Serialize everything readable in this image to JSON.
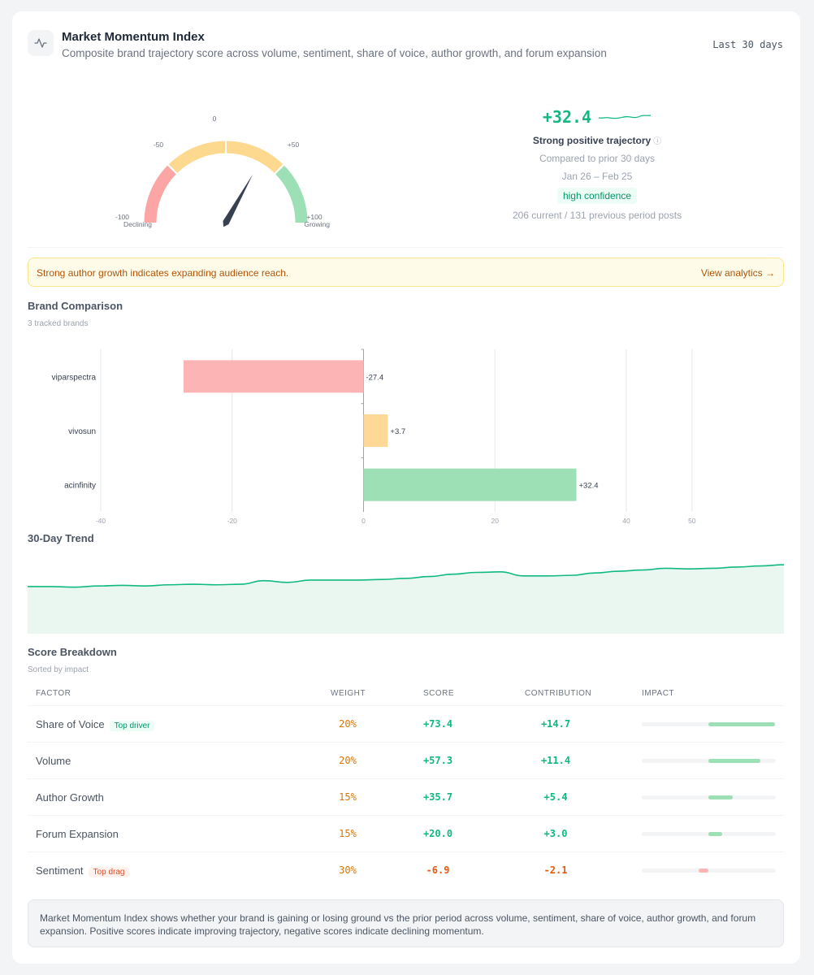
{
  "header": {
    "title": "Market Momentum Index",
    "subtitle": "Composite brand trajectory score across volume, sentiment, share of voice, author growth, and forum expansion",
    "range": "Last 30 days",
    "icon": "activity-icon"
  },
  "gauge": {
    "value": 32.4,
    "min": -100,
    "max": 100,
    "ticks": [
      "-100",
      "-50",
      "0",
      "+50",
      "+100"
    ],
    "label_left": "Declining",
    "label_right": "Growing",
    "colors": {
      "declining": "#fca5a5",
      "neutral": "#fcd98f",
      "growing": "#9ee0b5",
      "needle": "#374151"
    }
  },
  "summary": {
    "score": "+32.4",
    "trajectory": "Strong positive trajectory",
    "compared": "Compared to prior 30 days",
    "dates": "Jan 26 – Feb 25",
    "confidence": "high confidence",
    "posts": "206 current / 131 previous period posts"
  },
  "alert": {
    "text": "Strong author growth indicates expanding audience reach.",
    "link": "View analytics →"
  },
  "comparison": {
    "title": "Brand Comparison",
    "subtitle": "3 tracked brands"
  },
  "chart_data": [
    {
      "type": "bar",
      "orientation": "horizontal",
      "title": "Brand Comparison",
      "categories": [
        "viparspectra",
        "vivosun",
        "acinfinity"
      ],
      "values": [
        -27.4,
        3.7,
        32.4
      ],
      "value_labels": [
        "-27.4",
        "+3.7",
        "+32.4"
      ],
      "colors": [
        "#fdb4b4",
        "#fdd896",
        "#9de0b6"
      ],
      "xticks": [
        -40,
        -20,
        0,
        20,
        40,
        50
      ],
      "xlim": [
        -40,
        50
      ],
      "grid": true
    },
    {
      "type": "area",
      "title": "30-Day Trend",
      "y": [
        20,
        20,
        19,
        21,
        22,
        21,
        23,
        24,
        23,
        24,
        30,
        27,
        31,
        31,
        31,
        32,
        34,
        37,
        41,
        44,
        45,
        38,
        38,
        39,
        43,
        46,
        48,
        51,
        50,
        51,
        53,
        55,
        57
      ],
      "ylim": [
        -60,
        75
      ],
      "line_color": "#10b981",
      "fill_color": "#eaf7f1"
    }
  ],
  "trend": {
    "title": "30-Day Trend"
  },
  "breakdown": {
    "title": "Score Breakdown",
    "subtitle": "Sorted by impact",
    "headers": {
      "factor": "FACTOR",
      "weight": "WEIGHT",
      "score": "SCORE",
      "contribution": "CONTRIBUTION",
      "impact": "IMPACT"
    },
    "rows": [
      {
        "factor": "Share of Voice",
        "tag": "Top driver",
        "tag_type": "driver",
        "weight": "20%",
        "score": "+73.4",
        "contribution": "+14.7",
        "impact": 14.7
      },
      {
        "factor": "Volume",
        "tag": "",
        "tag_type": "",
        "weight": "20%",
        "score": "+57.3",
        "contribution": "+11.4",
        "impact": 11.4
      },
      {
        "factor": "Author Growth",
        "tag": "",
        "tag_type": "",
        "weight": "15%",
        "score": "+35.7",
        "contribution": "+5.4",
        "impact": 5.4
      },
      {
        "factor": "Forum Expansion",
        "tag": "",
        "tag_type": "",
        "weight": "15%",
        "score": "+20.0",
        "contribution": "+3.0",
        "impact": 3.0
      },
      {
        "factor": "Sentiment",
        "tag": "Top drag",
        "tag_type": "drag",
        "weight": "30%",
        "score": "-6.9",
        "contribution": "-2.1",
        "impact": -2.1
      }
    ]
  },
  "note": "Market Momentum Index shows whether your brand is gaining or losing ground vs the prior period across volume, sentiment, share of voice, author growth, and forum expansion. Positive scores indicate improving trajectory, negative scores indicate declining momentum."
}
